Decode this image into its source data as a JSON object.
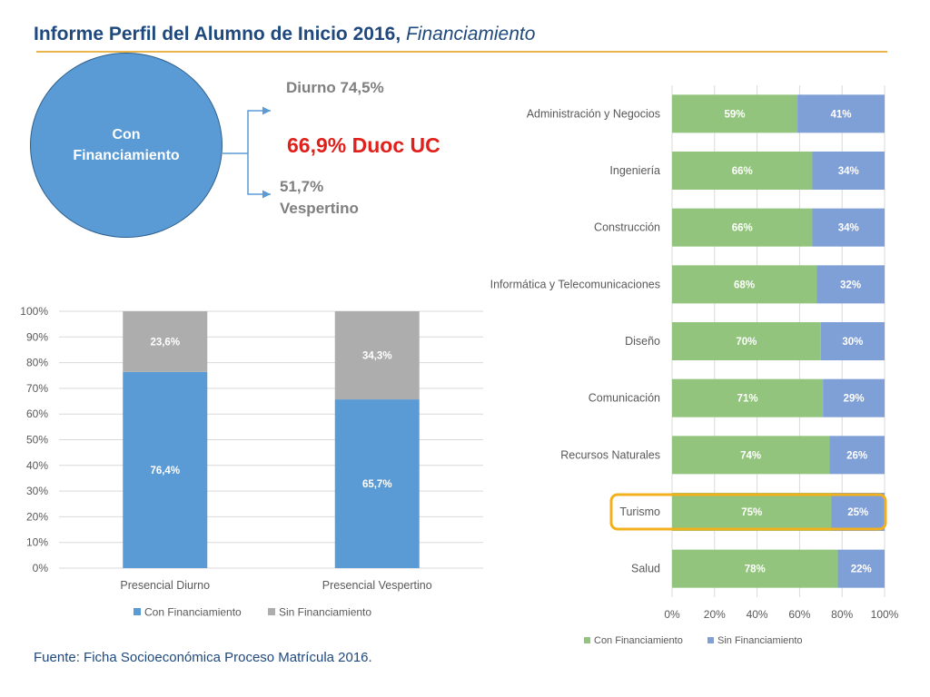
{
  "header": {
    "title_main": "Informe Perfil del Alumno de Inicio 2016,",
    "title_sub": "Financiamiento"
  },
  "diagram": {
    "circle_label": "Con Financiamiento",
    "diurno_label": "Diurno 74,5%",
    "vespertino_label": "51,7% Vespertino",
    "center_label": "66,9% Duoc UC"
  },
  "footer": {
    "source": "Fuente: Ficha Socioeconómica Proceso Matrícula 2016."
  },
  "colors": {
    "title": "#1F497D",
    "accent_line": "#E8B64C",
    "circle": "#5B9BD5",
    "highlight_red": "#E0201B",
    "con_col": "#5B9BD5",
    "sin_col": "#ADADAD",
    "con_bar": "#93C47D",
    "sin_bar": "#7F9FD7",
    "highlight_box": "#F2B11C"
  },
  "chart_data": [
    {
      "type": "bar",
      "orientation": "vertical",
      "stacked": true,
      "categories": [
        "Presencial Diurno",
        "Presencial Vespertino"
      ],
      "series": [
        {
          "name": "Con Financiamiento",
          "values": [
            76.4,
            65.7
          ],
          "labels": [
            "76,4%",
            "65,7%"
          ]
        },
        {
          "name": "Sin Financiamiento",
          "values": [
            23.6,
            34.3
          ],
          "labels": [
            "23,6%",
            "34,3%"
          ]
        }
      ],
      "ylim": [
        0,
        100
      ],
      "yticks": [
        "0%",
        "10%",
        "20%",
        "30%",
        "40%",
        "50%",
        "60%",
        "70%",
        "80%",
        "90%",
        "100%"
      ],
      "legend_position": "bottom",
      "grid": true
    },
    {
      "type": "bar",
      "orientation": "horizontal",
      "stacked": true,
      "categories": [
        "Administración y Negocios",
        "Ingeniería",
        "Construcción",
        "Informática y Telecomunicaciones",
        "Diseño",
        "Comunicación",
        "Recursos Naturales",
        "Turismo",
        "Salud"
      ],
      "series": [
        {
          "name": "Con Financiamiento",
          "values": [
            59,
            66,
            66,
            68,
            70,
            71,
            74,
            75,
            78
          ]
        },
        {
          "name": "Sin Financiamiento",
          "values": [
            41,
            34,
            34,
            32,
            30,
            29,
            26,
            25,
            22
          ]
        }
      ],
      "xlim": [
        0,
        100
      ],
      "xticks": [
        "0%",
        "20%",
        "40%",
        "60%",
        "80%",
        "100%"
      ],
      "highlighted_category": "Turismo",
      "legend_position": "bottom",
      "grid": true
    }
  ]
}
